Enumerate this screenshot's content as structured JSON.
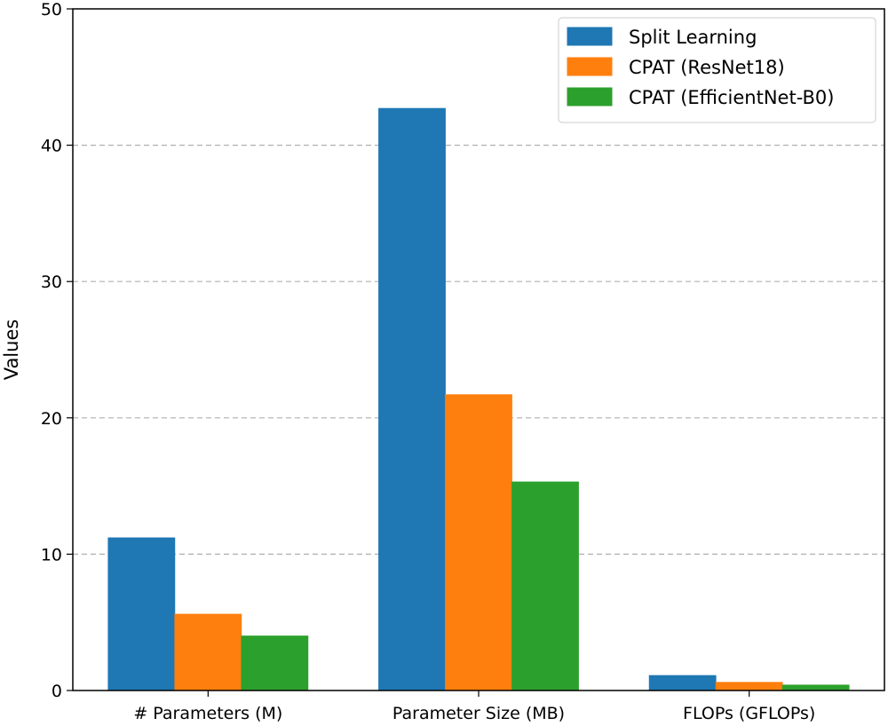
{
  "chart_data": {
    "type": "bar",
    "title": "",
    "xlabel": "",
    "ylabel": "Values",
    "ylim": [
      0,
      50
    ],
    "yticks": [
      0,
      10,
      20,
      30,
      40,
      50
    ],
    "grid": "y-dashed",
    "legend_position": "top-right",
    "categories": [
      "# Parameters (M)",
      "Parameter Size (MB)",
      "FLOPs (GFLOPs)"
    ],
    "series": [
      {
        "name": "Split Learning",
        "color": "#1f77b4",
        "values": [
          11.2,
          42.7,
          1.1
        ]
      },
      {
        "name": "CPAT (ResNet18)",
        "color": "#ff7f0e",
        "values": [
          5.6,
          21.7,
          0.6
        ]
      },
      {
        "name": "CPAT (EfficientNet-B0)",
        "color": "#2ca02c",
        "values": [
          4.0,
          15.3,
          0.4
        ]
      }
    ]
  }
}
